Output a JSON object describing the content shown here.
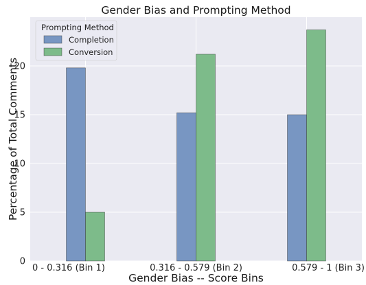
{
  "chart_data": {
    "type": "bar",
    "title": "Gender Bias and Prompting Method",
    "xlabel": "Gender Bias -- Score Bins",
    "ylabel": "Percentage of Total Comments",
    "categories": [
      "0 - 0.316 (Bin 1)",
      "0.316 - 0.579 (Bin 2)",
      "0.579 - 1 (Bin 3)"
    ],
    "series": [
      {
        "name": "Completion",
        "values": [
          19.8,
          15.2,
          15.0
        ],
        "color": "#7896c2"
      },
      {
        "name": "Conversion",
        "values": [
          5.0,
          21.2,
          23.7
        ],
        "color": "#7dbb8a"
      }
    ],
    "ylim": [
      0,
      25
    ],
    "yticks": [
      0,
      5,
      10,
      15,
      20
    ],
    "grid": true,
    "legend": {
      "title": "Prompting Method",
      "position": "top-left"
    },
    "colors": {
      "background": "#eaeaf2",
      "grid": "#ffffff",
      "edge": "#333333"
    }
  }
}
